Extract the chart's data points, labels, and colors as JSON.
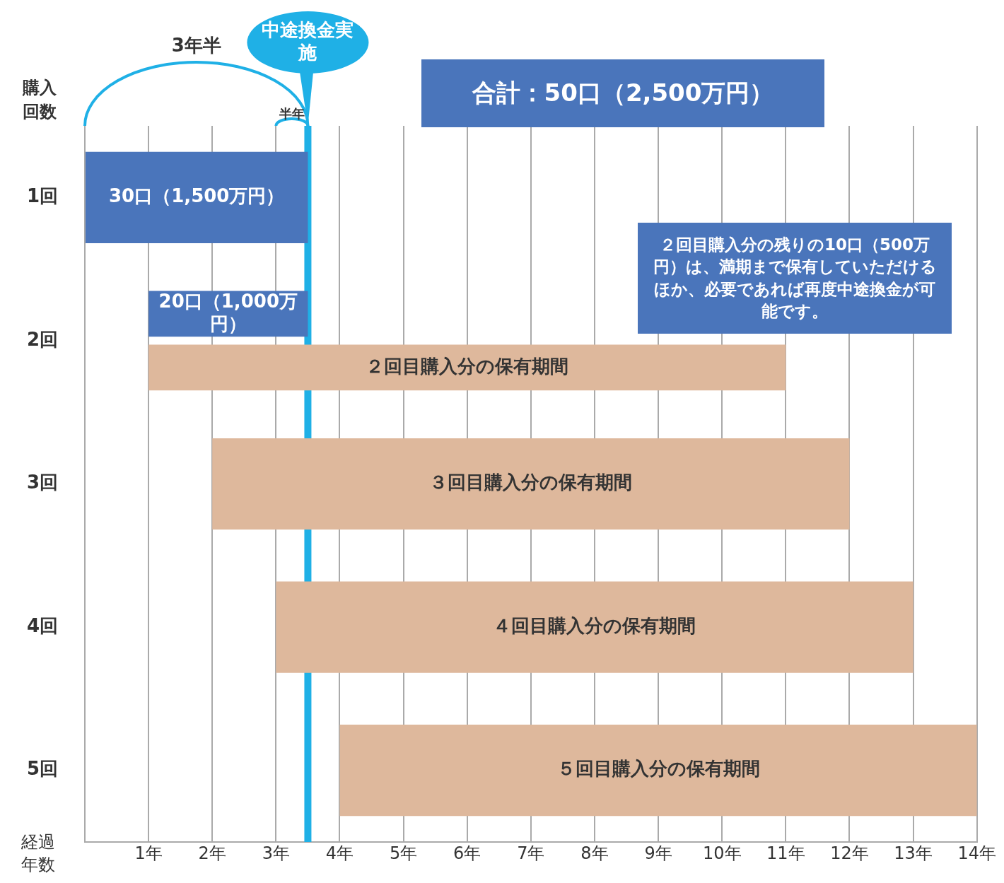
{
  "chart_data": {
    "type": "bar",
    "orientation": "horizontal",
    "ylabel": "購入回数",
    "xlabel": "経過年数",
    "categories": [
      "1回",
      "2回",
      "3回",
      "4回",
      "5回"
    ],
    "series": [
      {
        "color": "#4a75bb",
        "values": [
          3.5,
          2.5,
          null,
          null,
          null
        ],
        "base": [
          0,
          1,
          null,
          null,
          null
        ]
      },
      {
        "color": "#deb89c",
        "values": [
          null,
          10,
          10,
          10,
          10
        ],
        "base": [
          null,
          1,
          2,
          3,
          4
        ]
      }
    ],
    "xlim": [
      0,
      14
    ],
    "xticks": [
      {
        "value": 0,
        "label": null
      },
      {
        "value": 1,
        "label": "1年"
      },
      {
        "value": 2,
        "label": "2年"
      },
      {
        "value": 3,
        "label": "3年"
      },
      {
        "value": 4,
        "label": "4年"
      },
      {
        "value": 5,
        "label": "5年"
      },
      {
        "value": 6,
        "label": "6年"
      },
      {
        "value": 7,
        "label": "7年"
      },
      {
        "value": 8,
        "label": "8年"
      },
      {
        "value": 9,
        "label": "9年"
      },
      {
        "value": 10,
        "label": "10年"
      },
      {
        "value": 11,
        "label": "11年"
      },
      {
        "value": 12,
        "label": "12年"
      },
      {
        "value": 13,
        "label": "13年"
      },
      {
        "value": 14,
        "label": "14年"
      }
    ],
    "grid": "x",
    "legend": false,
    "ref_lines": [
      {
        "axis": "x",
        "value": 3.5,
        "label": "中途換金実施",
        "color": "#1fb0e6"
      }
    ],
    "annotations": [
      "3年半",
      "半年",
      "合計：50口（2,500万円）",
      "２回目購入分の残りの10口（500万円）は、満期まで保有していただけるほか、必要であれば再度中途換金が可能です。",
      "30口（1,500万円）",
      "20口（1,000万円）",
      "２回目購入分の保有期間",
      "３回目購入分の保有期間",
      "４回目購入分の保有期間",
      "５回目購入分の保有期間"
    ]
  }
}
